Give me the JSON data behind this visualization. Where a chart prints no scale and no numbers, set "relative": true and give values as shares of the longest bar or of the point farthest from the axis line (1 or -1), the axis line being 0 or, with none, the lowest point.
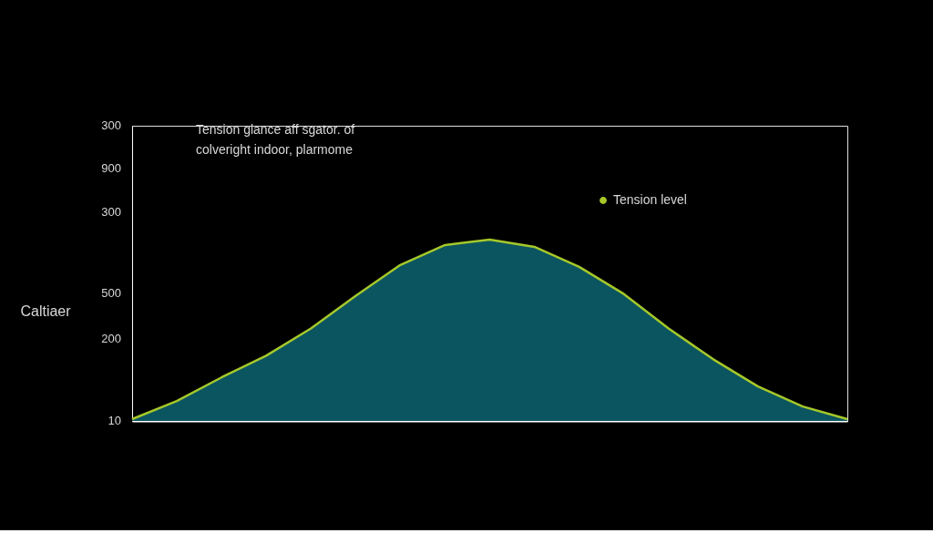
{
  "chart_data": {
    "type": "area",
    "title": "Tension glance aff sgator. of\ncolveright indoor, plarmome",
    "ylabel": "Caltiaer",
    "categories": [
      null,
      null,
      null,
      null,
      null,
      null,
      null,
      null,
      null,
      null,
      null,
      null,
      null,
      null,
      null,
      null,
      null
    ],
    "relative": true,
    "series": [
      {
        "color": "#0b5560",
        "values": [
          0.01,
          0.11,
          0.24,
          0.36,
          0.51,
          0.69,
          0.86,
          0.97,
          1.0,
          0.96,
          0.85,
          0.7,
          0.51,
          0.34,
          0.19,
          0.08,
          0.01
        ]
      },
      {
        "type": "line",
        "name": "Tension level",
        "color": "#a6c82a",
        "values": [
          0.01,
          0.11,
          0.24,
          0.36,
          0.51,
          0.69,
          0.86,
          0.97,
          1.0,
          0.96,
          0.85,
          0.7,
          0.51,
          0.34,
          0.19,
          0.08,
          0.01
        ]
      }
    ],
    "annotations": [
      "300",
      "900",
      "300",
      "500",
      "200",
      "10"
    ],
    "legend": "top right",
    "marker": "none",
    "line_style": "solid"
  }
}
